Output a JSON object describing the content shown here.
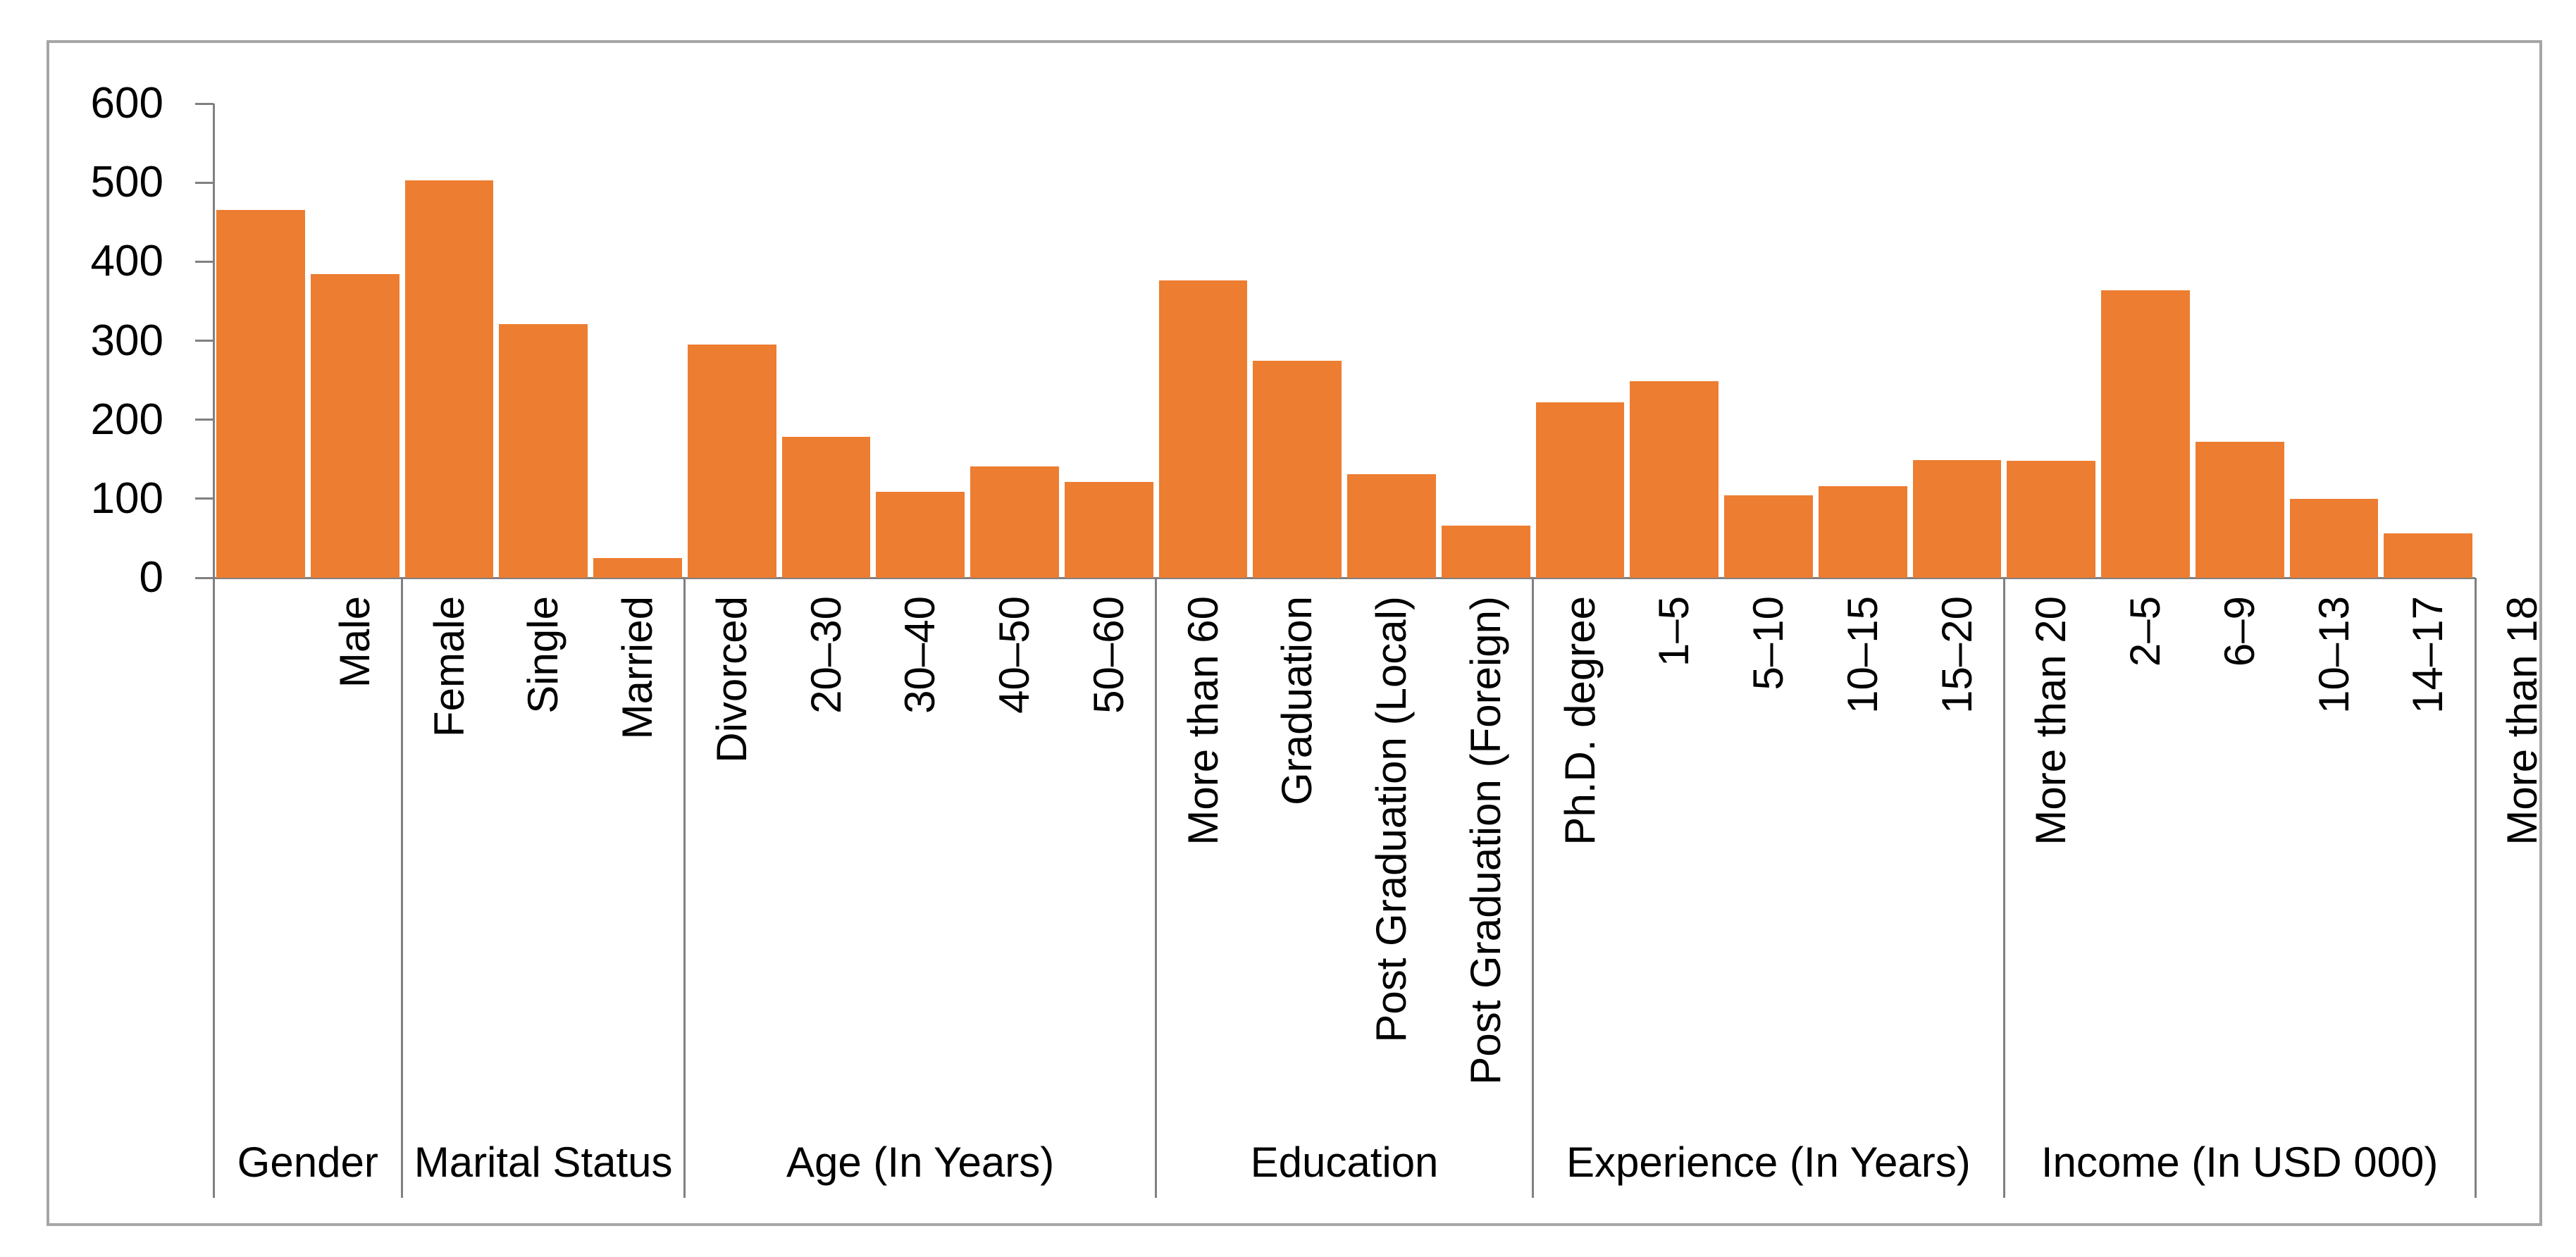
{
  "chart_data": {
    "type": "bar",
    "title": "",
    "xlabel": "",
    "ylabel": "",
    "ylim": [
      0,
      600
    ],
    "yticks": [
      "0",
      "100",
      "200",
      "300",
      "400",
      "500",
      "600"
    ],
    "grid": false,
    "legend": false,
    "bar_color": "#ED7D31",
    "axis_color": "#808080",
    "frame_color": "#A6A6A6",
    "text_color": "#000000",
    "axis_style": "multi-level category axis, rotated category labels, group separators below axis",
    "groups": [
      {
        "label": "Gender",
        "categories": [
          "Male",
          "Female"
        ],
        "values": [
          465,
          384
        ]
      },
      {
        "label": "Marital Status",
        "categories": [
          "Single",
          "Married",
          "Divorced"
        ],
        "values": [
          503,
          321,
          25
        ]
      },
      {
        "label": "Age (In Years)",
        "categories": [
          "20–30",
          "30–40",
          "40–50",
          "50–60",
          "More than 60"
        ],
        "values": [
          295,
          178,
          109,
          141,
          121
        ]
      },
      {
        "label": "Education",
        "categories": [
          "Graduation",
          "Post Graduation (Local)",
          "Post Graduation (Foreign)",
          "Ph.D. degree"
        ],
        "values": [
          376,
          275,
          131,
          66
        ]
      },
      {
        "label": "Experience (In Years)",
        "categories": [
          "1–5",
          "5–10",
          "10–15",
          "15–20",
          "More than 20"
        ],
        "values": [
          222,
          249,
          104,
          116,
          149
        ]
      },
      {
        "label": "Income (In USD 000)",
        "categories": [
          "2–5",
          "6–9",
          "10–13",
          "14–17",
          "More than 18"
        ],
        "values": [
          148,
          364,
          172,
          100,
          56
        ]
      }
    ]
  }
}
